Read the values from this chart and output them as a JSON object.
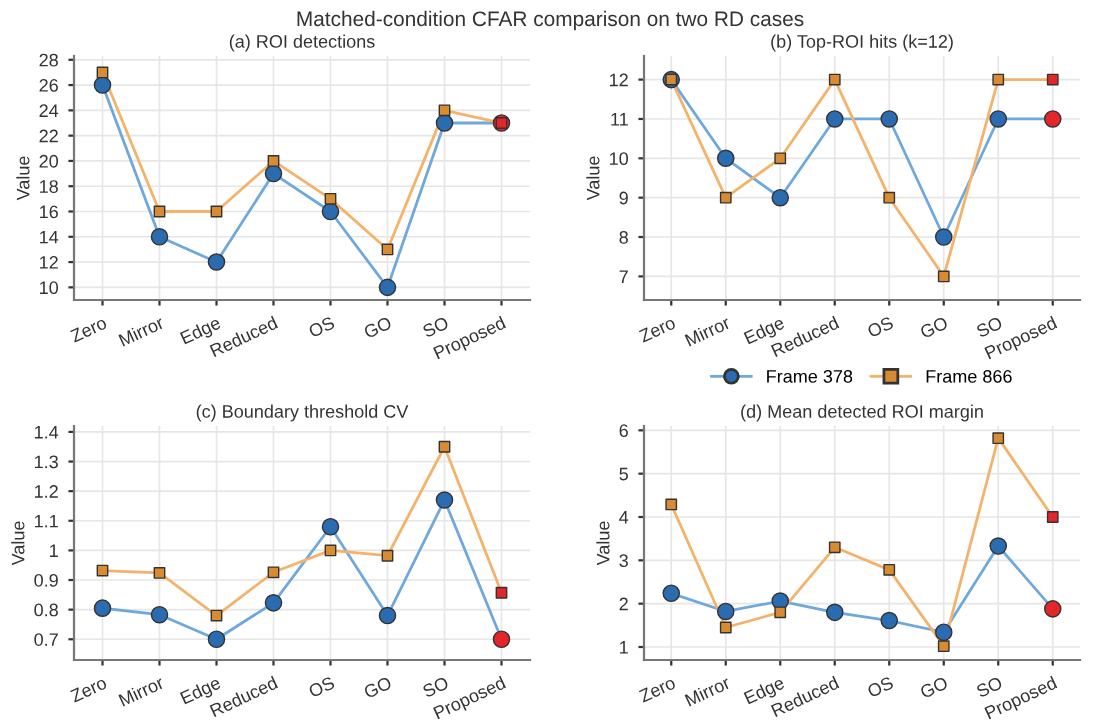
{
  "chart_data": [
    {
      "type": "line",
      "title": "(a) ROI detections",
      "ylabel": "Value",
      "annotations": [
        "Matched-condition CFAR comparison on two RD cases"
      ],
      "categories": [
        "Zero",
        "Mirror",
        "Edge",
        "Reduced",
        "OS",
        "GO",
        "SO",
        "Proposed"
      ],
      "ylim": [
        9,
        28.3
      ],
      "yticks": [
        10,
        12,
        14,
        16,
        18,
        20,
        22,
        24,
        26,
        28
      ],
      "grid": true,
      "series": [
        {
          "color": "#6fa8dc",
          "marker": "circle",
          "colors": [
            "#2b6cb0",
            "#2b6cb0",
            "#2b6cb0",
            "#2b6cb0",
            "#2b6cb0",
            "#2b6cb0",
            "#2b6cb0",
            "#e3262a"
          ],
          "values": [
            26,
            14,
            12,
            19,
            16,
            10,
            23,
            23
          ]
        },
        {
          "color": "#f5b26b",
          "marker": "square",
          "colors": [
            "#d98b32",
            "#d98b32",
            "#d98b32",
            "#d98b32",
            "#d98b32",
            "#d98b32",
            "#d98b32",
            "#e3262a"
          ],
          "values": [
            27,
            16,
            16,
            20,
            17,
            13,
            24,
            23
          ]
        }
      ]
    },
    {
      "type": "line",
      "title": "(b) Top-ROI hits (k=12)",
      "ylabel": "Value",
      "categories": [
        "Zero",
        "Mirror",
        "Edge",
        "Reduced",
        "OS",
        "GO",
        "SO",
        "Proposed"
      ],
      "ylim": [
        6.4,
        12.6
      ],
      "yticks": [
        7,
        8,
        9,
        10,
        11,
        12
      ],
      "grid": true,
      "series": [
        {
          "color": "#6fa8dc",
          "marker": "circle",
          "colors": [
            "#2b6cb0",
            "#2b6cb0",
            "#2b6cb0",
            "#2b6cb0",
            "#2b6cb0",
            "#2b6cb0",
            "#2b6cb0",
            "#e3262a"
          ],
          "values": [
            12,
            10,
            9,
            11,
            11,
            8,
            11,
            11
          ]
        },
        {
          "color": "#f5b26b",
          "marker": "square",
          "colors": [
            "#d98b32",
            "#d98b32",
            "#d98b32",
            "#d98b32",
            "#d98b32",
            "#d98b32",
            "#d98b32",
            "#e3262a"
          ],
          "values": [
            12,
            9,
            10,
            12,
            9,
            7,
            12,
            12
          ]
        }
      ]
    },
    {
      "type": "line",
      "title": "(c) Boundary threshold CV",
      "ylabel": "Value",
      "categories": [
        "Zero",
        "Mirror",
        "Edge",
        "Reduced",
        "OS",
        "GO",
        "SO",
        "Proposed"
      ],
      "ylim": [
        0.63,
        1.42
      ],
      "yticks": [
        0.7,
        0.8,
        0.9,
        1,
        1.1,
        1.2,
        1.3,
        1.4
      ],
      "grid": true,
      "series": [
        {
          "color": "#6fa8dc",
          "marker": "circle",
          "colors": [
            "#2b6cb0",
            "#2b6cb0",
            "#2b6cb0",
            "#2b6cb0",
            "#2b6cb0",
            "#2b6cb0",
            "#2b6cb0",
            "#e3262a"
          ],
          "values": [
            0.805,
            0.783,
            0.7,
            0.823,
            1.08,
            0.78,
            1.17,
            0.7
          ]
        },
        {
          "color": "#f5b26b",
          "marker": "square",
          "colors": [
            "#d98b32",
            "#d98b32",
            "#d98b32",
            "#d98b32",
            "#d98b32",
            "#d98b32",
            "#d98b32",
            "#e3262a"
          ],
          "values": [
            0.932,
            0.924,
            0.78,
            0.926,
            1.0,
            0.982,
            1.35,
            0.857
          ]
        }
      ]
    },
    {
      "type": "line",
      "title": "(d) Mean detected ROI margin",
      "ylabel": "Value",
      "categories": [
        "Zero",
        "Mirror",
        "Edge",
        "Reduced",
        "OS",
        "GO",
        "SO",
        "Proposed"
      ],
      "ylim": [
        0.7,
        6.1
      ],
      "yticks": [
        1,
        2,
        3,
        4,
        5,
        6
      ],
      "grid": true,
      "legend": "top",
      "series": [
        {
          "name": "Frame 378",
          "color": "#6fa8dc",
          "marker": "circle",
          "colors": [
            "#2b6cb0",
            "#2b6cb0",
            "#2b6cb0",
            "#2b6cb0",
            "#2b6cb0",
            "#2b6cb0",
            "#2b6cb0",
            "#e3262a"
          ],
          "values": [
            2.24,
            1.82,
            2.06,
            1.8,
            1.61,
            1.34,
            3.33,
            1.88
          ]
        },
        {
          "name": "Frame 866",
          "color": "#f5b26b",
          "marker": "square",
          "colors": [
            "#d98b32",
            "#d98b32",
            "#d98b32",
            "#d98b32",
            "#d98b32",
            "#d98b32",
            "#d98b32",
            "#e3262a"
          ],
          "values": [
            4.29,
            1.45,
            1.8,
            3.3,
            2.78,
            1.02,
            5.82,
            4.0
          ]
        }
      ]
    }
  ]
}
